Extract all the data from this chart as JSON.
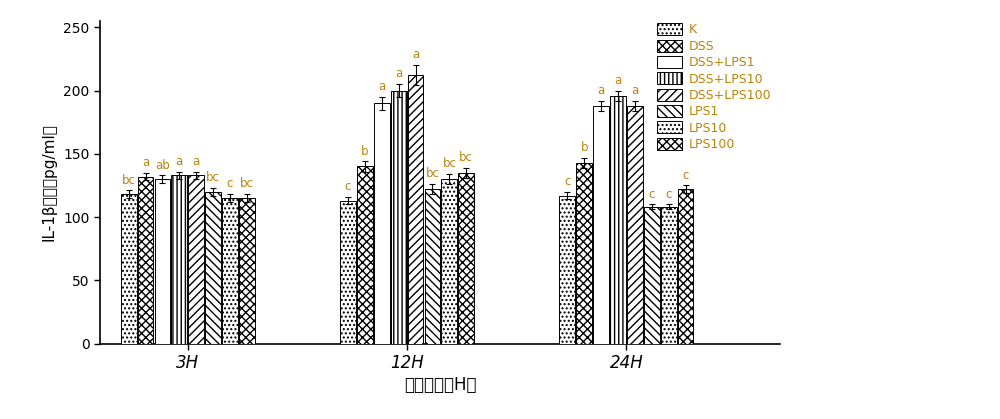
{
  "groups": [
    "3H",
    "12H",
    "24H"
  ],
  "series_labels": [
    "K",
    "DSS",
    "DSS+LPS1",
    "DSS+LPS10",
    "DSS+LPS100",
    "LPS1",
    "LPS10",
    "LPS100"
  ],
  "values": [
    [
      118,
      132,
      130,
      133,
      133,
      120,
      115,
      115
    ],
    [
      113,
      140,
      190,
      200,
      212,
      122,
      130,
      135
    ],
    [
      117,
      143,
      188,
      196,
      188,
      108,
      108,
      122
    ]
  ],
  "errors": [
    [
      3,
      3,
      3,
      3,
      3,
      3,
      3,
      3
    ],
    [
      3,
      4,
      5,
      5,
      8,
      4,
      4,
      4
    ],
    [
      3,
      4,
      4,
      4,
      4,
      2,
      2,
      3
    ]
  ],
  "significance_3H": [
    "bc",
    "a",
    "ab",
    "a",
    "a",
    "bc",
    "c",
    "bc"
  ],
  "significance_12H": [
    "c",
    "b",
    "a",
    "a",
    "a",
    "bc",
    "bc",
    "bc"
  ],
  "significance_24H": [
    "c",
    "b",
    "a",
    "a",
    "a",
    "c",
    "c",
    "c"
  ],
  "ylabel": "IL-1β浓度（pg/ml）",
  "xlabel": "刺激时间（H）",
  "ylim": [
    0,
    255
  ],
  "yticks": [
    0,
    50,
    100,
    150,
    200,
    250
  ],
  "bar_width": 0.072,
  "text_color": "#b8860b",
  "sig_fontsize": 8.5,
  "group_centers": [
    0.35,
    1.35,
    2.35
  ],
  "xlim": [
    -0.05,
    3.05
  ]
}
